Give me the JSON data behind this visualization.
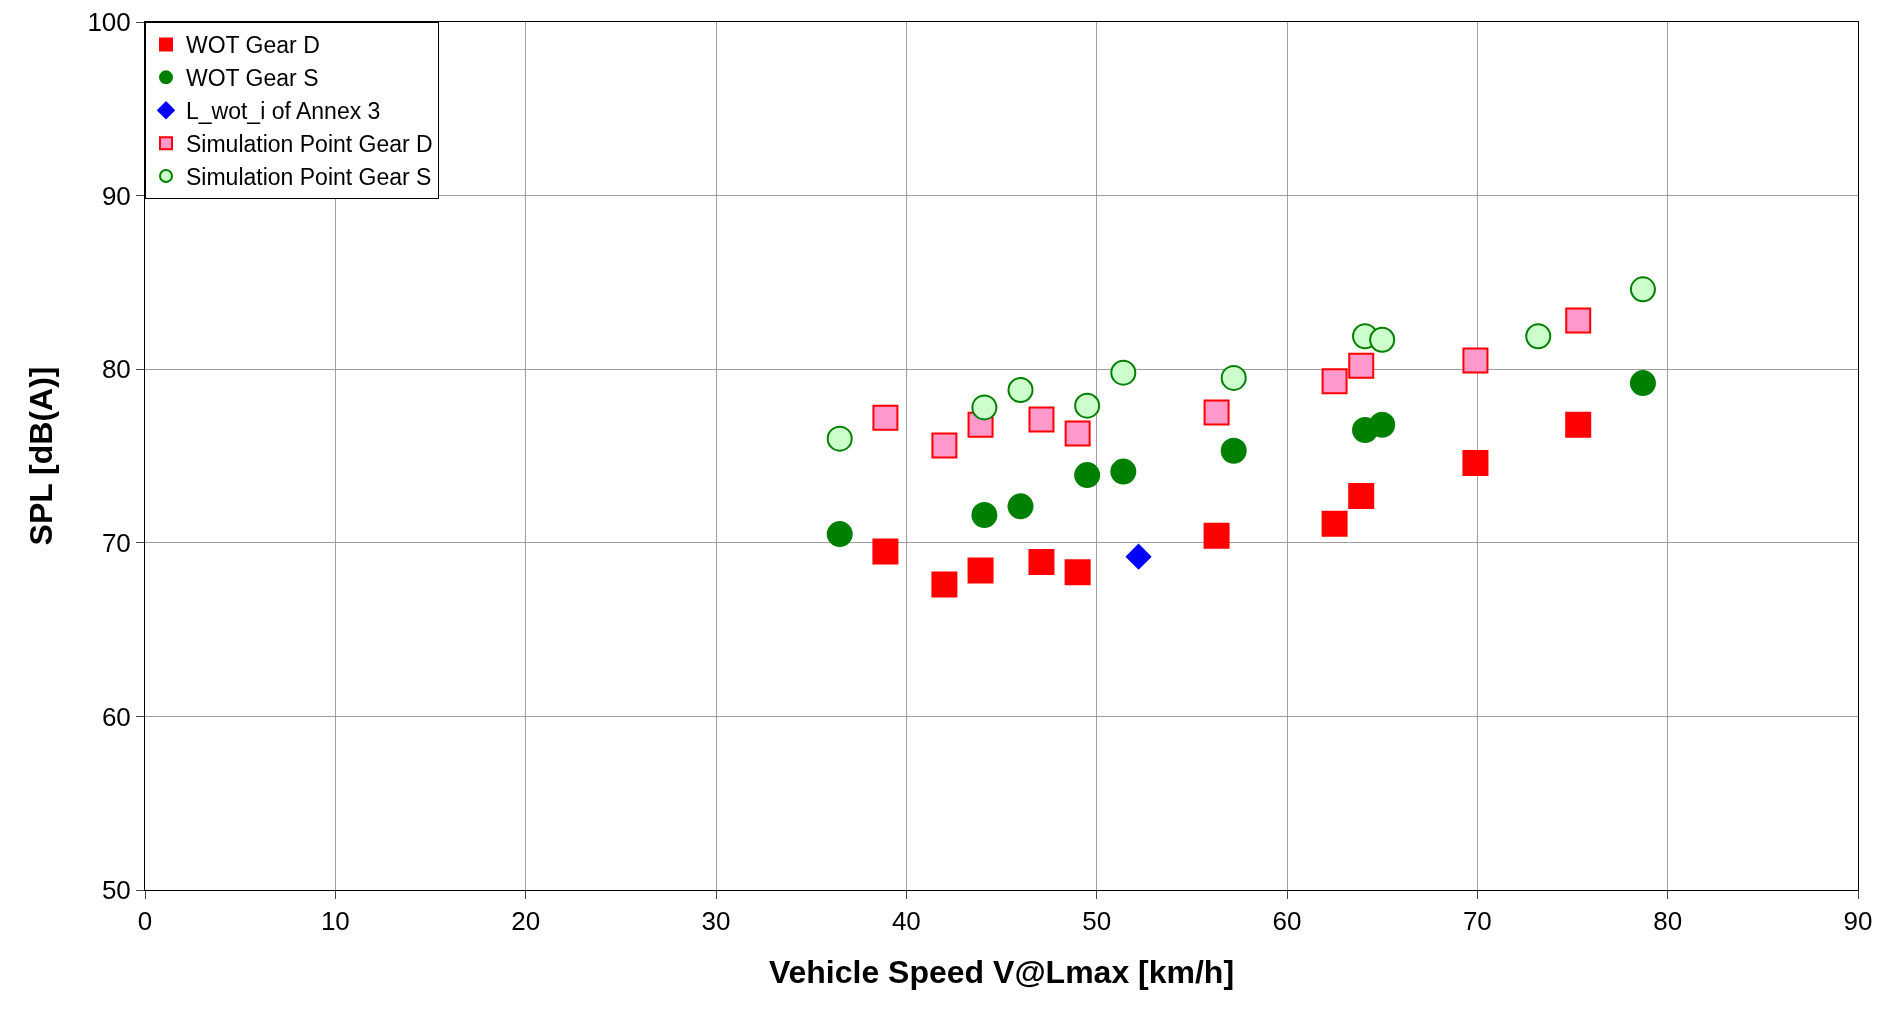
{
  "chart_data": {
    "type": "scatter",
    "xlabel": "Vehicle Speed V@Lmax [km/h]",
    "ylabel": "SPL [dB(A)]",
    "xlim": [
      0,
      90
    ],
    "xticks": [
      0,
      10,
      20,
      30,
      40,
      50,
      60,
      70,
      80,
      90
    ],
    "ylim": [
      50,
      100
    ],
    "yticks": [
      50,
      60,
      70,
      80,
      90,
      100
    ],
    "grid": true,
    "legend": "top left",
    "series": [
      {
        "name": "WOT Gear D",
        "color": "#ff0000",
        "marker": "square",
        "x": [
          38.9,
          42.0,
          43.9,
          47.1,
          49.0,
          56.3,
          62.5,
          63.9,
          69.9,
          75.3
        ],
        "values": [
          69.5,
          67.6,
          68.4,
          68.9,
          68.3,
          70.4,
          71.1,
          72.7,
          74.6,
          76.8
        ]
      },
      {
        "name": "WOT Gear S",
        "color": "#008000",
        "marker": "circle",
        "x": [
          36.5,
          44.1,
          46.0,
          49.5,
          51.4,
          57.2,
          64.1,
          65.0,
          78.7
        ],
        "values": [
          70.5,
          71.6,
          72.1,
          73.9,
          74.1,
          75.3,
          76.5,
          76.8,
          79.2
        ]
      },
      {
        "name": "L_wot_i of Annex 3",
        "color": "#0000ff",
        "marker": "diamond",
        "x": [
          52.2
        ],
        "values": [
          69.2
        ]
      },
      {
        "name": "Simulation Point Gear D",
        "color": "#ff99cc",
        "marker": "square",
        "x": [
          38.9,
          42.0,
          43.9,
          47.1,
          49.0,
          56.3,
          62.5,
          63.9,
          69.9,
          75.3
        ],
        "values": [
          77.2,
          75.6,
          76.8,
          77.1,
          76.3,
          77.5,
          79.3,
          80.2,
          80.5,
          82.8
        ]
      },
      {
        "name": "Simulation Point Gear S",
        "color": "#ccffcc",
        "marker": "circle",
        "x": [
          36.5,
          44.1,
          46.0,
          49.5,
          51.4,
          57.2,
          64.1,
          65.0,
          73.2,
          78.7
        ],
        "values": [
          76.0,
          77.8,
          78.8,
          77.9,
          79.8,
          79.5,
          81.9,
          81.7,
          81.9,
          84.6
        ]
      }
    ]
  }
}
